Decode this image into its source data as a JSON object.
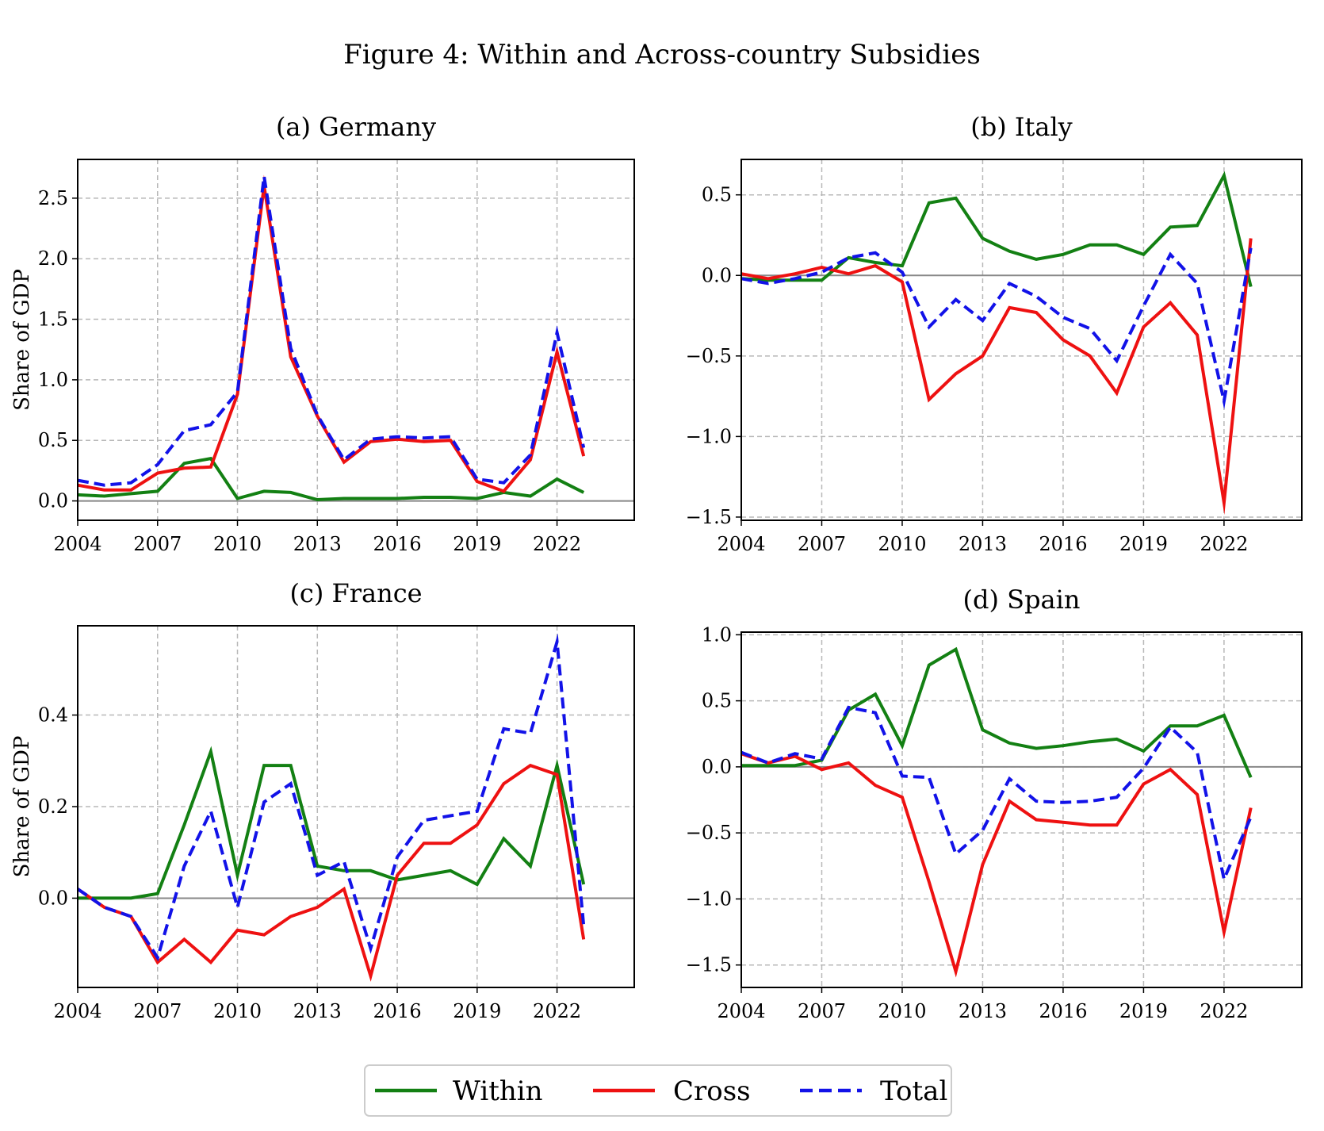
{
  "figure_title": "Figure 4: Within and Across-country Subsidies",
  "legend": {
    "items": [
      "Within",
      "Cross",
      "Total"
    ]
  },
  "colors": {
    "within": "#138013",
    "cross": "#ee1111",
    "total": "#1212e8",
    "zero": "#888888",
    "grid": "#b8b8b8"
  },
  "chart_data": [
    {
      "type": "line",
      "title": "(a) Germany",
      "ylabel": "Share of GDP",
      "xlim": [
        2004,
        2024.9
      ],
      "ylim": [
        -0.16,
        2.82
      ],
      "xticks": [
        2004,
        2007,
        2010,
        2013,
        2016,
        2019,
        2022
      ],
      "yticks": [
        0.0,
        0.5,
        1.0,
        1.5,
        2.0,
        2.5
      ],
      "ytick_labels": [
        "0.0",
        "0.5",
        "1.0",
        "1.5",
        "2.0",
        "2.5"
      ],
      "x": [
        2004,
        2005,
        2006,
        2007,
        2008,
        2009,
        2010,
        2011,
        2012,
        2013,
        2014,
        2015,
        2016,
        2017,
        2018,
        2019,
        2020,
        2021,
        2022,
        2023
      ],
      "series": [
        {
          "name": "Within",
          "values": [
            0.05,
            0.04,
            0.06,
            0.08,
            0.31,
            0.35,
            0.02,
            0.08,
            0.07,
            0.01,
            0.02,
            0.02,
            0.02,
            0.03,
            0.03,
            0.02,
            0.07,
            0.04,
            0.18,
            0.07
          ]
        },
        {
          "name": "Cross",
          "values": [
            0.13,
            0.09,
            0.09,
            0.23,
            0.27,
            0.28,
            0.88,
            2.6,
            1.19,
            0.7,
            0.32,
            0.49,
            0.51,
            0.49,
            0.5,
            0.16,
            0.08,
            0.34,
            1.23,
            0.37
          ]
        },
        {
          "name": "Total",
          "values": [
            0.17,
            0.13,
            0.15,
            0.3,
            0.58,
            0.63,
            0.9,
            2.68,
            1.26,
            0.71,
            0.34,
            0.51,
            0.53,
            0.52,
            0.53,
            0.18,
            0.15,
            0.38,
            1.39,
            0.44
          ]
        }
      ]
    },
    {
      "type": "line",
      "title": "(b) Italy",
      "ylabel": "",
      "xlim": [
        2004,
        2024.9
      ],
      "ylim": [
        -1.52,
        0.72
      ],
      "xticks": [
        2004,
        2007,
        2010,
        2013,
        2016,
        2019,
        2022
      ],
      "yticks": [
        0.5,
        0.0,
        -0.5,
        -1.0,
        -1.5
      ],
      "ytick_labels": [
        "0.5",
        "0.0",
        "−0.5",
        "−1.0",
        "−1.5"
      ],
      "x": [
        2004,
        2005,
        2006,
        2007,
        2008,
        2009,
        2010,
        2011,
        2012,
        2013,
        2014,
        2015,
        2016,
        2017,
        2018,
        2019,
        2020,
        2021,
        2022,
        2023
      ],
      "series": [
        {
          "name": "Within",
          "values": [
            -0.02,
            -0.03,
            -0.03,
            -0.03,
            0.11,
            0.08,
            0.06,
            0.45,
            0.48,
            0.23,
            0.15,
            0.1,
            0.13,
            0.19,
            0.19,
            0.13,
            0.3,
            0.31,
            0.62,
            -0.07
          ]
        },
        {
          "name": "Cross",
          "values": [
            0.01,
            -0.02,
            0.01,
            0.05,
            0.01,
            0.06,
            -0.04,
            -0.77,
            -0.61,
            -0.5,
            -0.2,
            -0.23,
            -0.4,
            -0.5,
            -0.73,
            -0.32,
            -0.17,
            -0.37,
            -1.41,
            0.23
          ]
        },
        {
          "name": "Total",
          "values": [
            -0.02,
            -0.05,
            -0.02,
            0.02,
            0.11,
            0.14,
            0.02,
            -0.32,
            -0.15,
            -0.28,
            -0.05,
            -0.13,
            -0.26,
            -0.33,
            -0.53,
            -0.19,
            0.13,
            -0.05,
            -0.78,
            0.17
          ]
        }
      ]
    },
    {
      "type": "line",
      "title": "(c) France",
      "ylabel": "Share of GDP",
      "xlim": [
        2004,
        2024.9
      ],
      "ylim": [
        -0.195,
        0.595
      ],
      "xticks": [
        2004,
        2007,
        2010,
        2013,
        2016,
        2019,
        2022
      ],
      "yticks": [
        0.0,
        0.2,
        0.4
      ],
      "ytick_labels": [
        "0.0",
        "0.2",
        "0.4"
      ],
      "x": [
        2004,
        2005,
        2006,
        2007,
        2008,
        2009,
        2010,
        2011,
        2012,
        2013,
        2014,
        2015,
        2016,
        2017,
        2018,
        2019,
        2020,
        2021,
        2022,
        2023
      ],
      "series": [
        {
          "name": "Within",
          "values": [
            0.0,
            0.0,
            0.0,
            0.01,
            0.16,
            0.32,
            0.05,
            0.29,
            0.29,
            0.07,
            0.06,
            0.06,
            0.04,
            0.05,
            0.06,
            0.03,
            0.13,
            0.07,
            0.29,
            0.03
          ]
        },
        {
          "name": "Cross",
          "values": [
            0.02,
            -0.02,
            -0.04,
            -0.14,
            -0.09,
            -0.14,
            -0.07,
            -0.08,
            -0.04,
            -0.02,
            0.02,
            -0.17,
            0.05,
            0.12,
            0.12,
            0.16,
            0.25,
            0.29,
            0.27,
            -0.09
          ]
        },
        {
          "name": "Total",
          "values": [
            0.02,
            -0.02,
            -0.04,
            -0.13,
            0.07,
            0.19,
            -0.02,
            0.21,
            0.25,
            0.05,
            0.08,
            -0.11,
            0.09,
            0.17,
            0.18,
            0.19,
            0.37,
            0.36,
            0.56,
            -0.06
          ]
        }
      ]
    },
    {
      "type": "line",
      "title": "(d) Spain",
      "ylabel": "",
      "xlim": [
        2004,
        2024.9
      ],
      "ylim": [
        -1.67,
        1.02
      ],
      "xticks": [
        2004,
        2007,
        2010,
        2013,
        2016,
        2019,
        2022
      ],
      "yticks": [
        1.0,
        0.5,
        0.0,
        -0.5,
        -1.0,
        -1.5
      ],
      "ytick_labels": [
        "1.0",
        "0.5",
        "0.0",
        "−0.5",
        "−1.0",
        "−1.5"
      ],
      "x": [
        2004,
        2005,
        2006,
        2007,
        2008,
        2009,
        2010,
        2011,
        2012,
        2013,
        2014,
        2015,
        2016,
        2017,
        2018,
        2019,
        2020,
        2021,
        2022,
        2023
      ],
      "series": [
        {
          "name": "Within",
          "values": [
            0.01,
            0.01,
            0.01,
            0.05,
            0.43,
            0.55,
            0.16,
            0.77,
            0.89,
            0.28,
            0.18,
            0.14,
            0.16,
            0.19,
            0.21,
            0.12,
            0.31,
            0.31,
            0.39,
            -0.08
          ]
        },
        {
          "name": "Cross",
          "values": [
            0.1,
            0.03,
            0.08,
            -0.02,
            0.03,
            -0.14,
            -0.23,
            -0.87,
            -1.55,
            -0.74,
            -0.26,
            -0.4,
            -0.42,
            -0.44,
            -0.44,
            -0.13,
            -0.02,
            -0.21,
            -1.25,
            -0.31
          ]
        },
        {
          "name": "Total",
          "values": [
            0.11,
            0.03,
            0.1,
            0.06,
            0.45,
            0.41,
            -0.07,
            -0.08,
            -0.66,
            -0.48,
            -0.09,
            -0.26,
            -0.27,
            -0.26,
            -0.23,
            -0.01,
            0.3,
            0.11,
            -0.85,
            -0.38
          ]
        }
      ]
    }
  ]
}
